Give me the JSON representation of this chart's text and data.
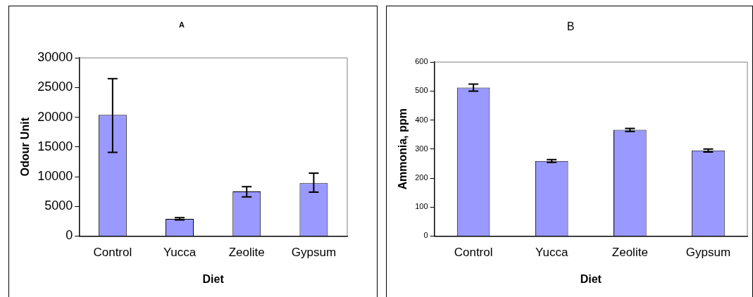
{
  "chart_data": [
    {
      "type": "bar",
      "title": "A",
      "xlabel": "Diet",
      "ylabel": "Odour Unit",
      "categories": [
        "Control",
        "Yucca",
        "Zeolite",
        "Gypsum"
      ],
      "values": [
        20400,
        2900,
        7500,
        8900
      ],
      "color": "#9999ff",
      "errors": [
        [
          14100,
          26500
        ],
        [
          2700,
          3100
        ],
        [
          6600,
          8300
        ],
        [
          7400,
          10600
        ]
      ],
      "ylim": [
        0,
        30000
      ],
      "yticks": [
        0,
        5000,
        10000,
        15000,
        20000,
        25000,
        30000
      ],
      "grid": false
    },
    {
      "type": "bar",
      "title": "B",
      "xlabel": "Diet",
      "ylabel": "Ammonia, ppm",
      "categories": [
        "Control",
        "Yucca",
        "Zeolite",
        "Gypsum"
      ],
      "values": [
        512,
        259,
        366,
        295
      ],
      "color": "#9999ff",
      "errors": [
        12,
        5,
        5,
        5
      ],
      "ylim": [
        0,
        600
      ],
      "yticks": [
        0,
        100,
        200,
        300,
        400,
        500,
        600
      ],
      "grid": false
    }
  ]
}
